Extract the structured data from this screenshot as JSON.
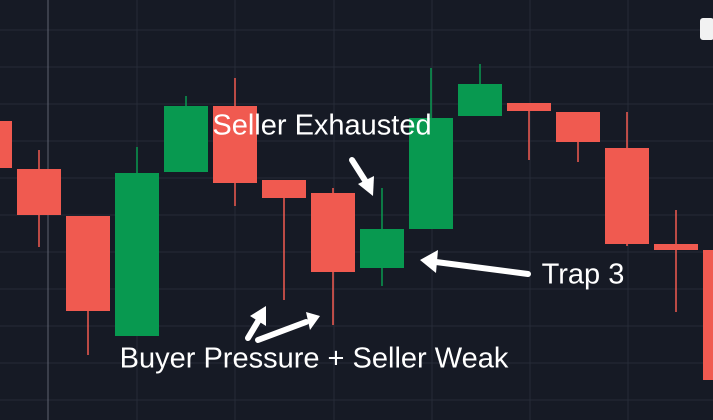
{
  "chart_data": {
    "type": "candlestick",
    "open": [
      299,
      251,
      204,
      84,
      248,
      314,
      240,
      227,
      152,
      191,
      304,
      317,
      308,
      272,
      176,
      170
    ],
    "high": [
      299,
      270,
      204,
      273,
      324,
      342,
      240,
      232,
      232,
      352,
      356,
      317,
      308,
      308,
      210,
      170
    ],
    "low": [
      252,
      173,
      65,
      84,
      248,
      214,
      120,
      95,
      134,
      191,
      304,
      260,
      258,
      174,
      108,
      40
    ],
    "close": [
      252,
      205,
      109,
      247,
      314,
      237,
      222,
      148,
      191,
      302,
      336,
      309,
      278,
      176,
      170,
      40
    ],
    "ylim": [
      0,
      420
    ],
    "up_color": "#089950",
    "down_color": "#f05a50",
    "annotations": [
      {
        "text": "Seller Exhausted"
      },
      {
        "text": "Trap 3"
      },
      {
        "text": "Buyer Pressure + Seller Weak"
      }
    ]
  }
}
